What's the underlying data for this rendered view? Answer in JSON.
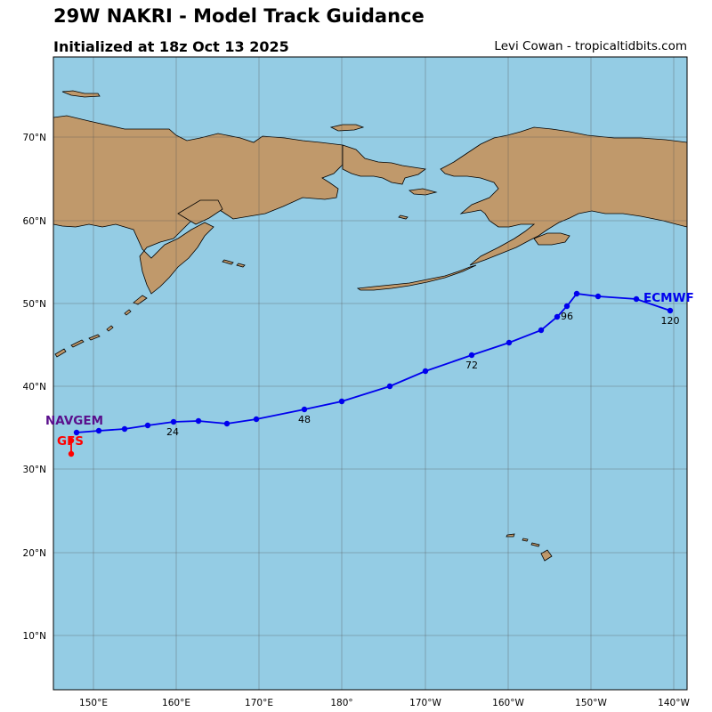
{
  "header": {
    "title": "29W NAKRI - Model Track Guidance",
    "subtitle": "Initialized at 18z Oct 13 2025",
    "credit": "Levi Cowan - tropicaltidbits.com"
  },
  "map": {
    "ocean_color": "#94cce4",
    "land_color": "#c0996b",
    "lon_labels": [
      "150°E",
      "160°E",
      "170°E",
      "180°",
      "170°W",
      "160°W",
      "150°W",
      "140°W"
    ],
    "lat_labels": [
      "10°N",
      "20°N",
      "30°N",
      "40°N",
      "50°N",
      "60°N",
      "70°N"
    ]
  },
  "tracks": [
    {
      "model": "ECMWF",
      "color": "#0000ee",
      "hour_labels": [
        "24",
        "48",
        "72",
        "96",
        "120"
      ]
    },
    {
      "model": "NAVGEM",
      "color": "#5a0f8c",
      "hour_labels": []
    },
    {
      "model": "GFS",
      "color": "#ff0000",
      "hour_labels": []
    }
  ]
}
